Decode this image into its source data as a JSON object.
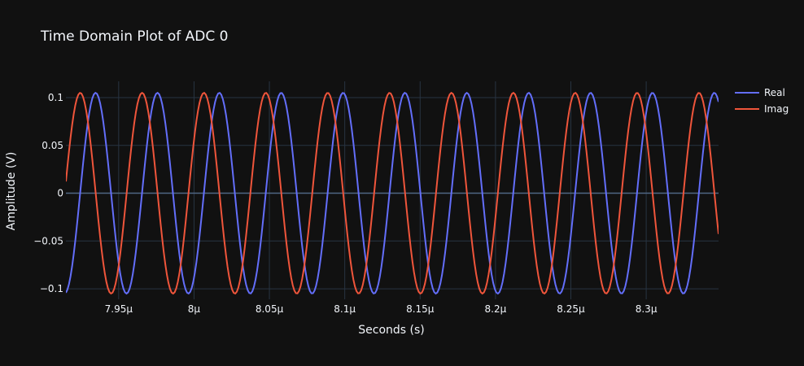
{
  "chart_data": {
    "type": "line",
    "title": "Time Domain Plot of ADC 0",
    "xlabel": "Seconds (s)",
    "ylabel": "Amplitude (V)",
    "xlim": [
      7.915e-06,
      8.348e-06
    ],
    "ylim": [
      -0.111,
      0.117
    ],
    "x_ticks": [
      {
        "value": 7.95e-06,
        "label": "7.95μ"
      },
      {
        "value": 8e-06,
        "label": "8μ"
      },
      {
        "value": 8.05e-06,
        "label": "8.05μ"
      },
      {
        "value": 8.1e-06,
        "label": "8.1μ"
      },
      {
        "value": 8.15e-06,
        "label": "8.15μ"
      },
      {
        "value": 8.2e-06,
        "label": "8.2μ"
      },
      {
        "value": 8.25e-06,
        "label": "8.25μ"
      },
      {
        "value": 8.3e-06,
        "label": "8.3μ"
      }
    ],
    "y_ticks": [
      {
        "value": 0.1,
        "label": "0.1"
      },
      {
        "value": 0.05,
        "label": "0.05"
      },
      {
        "value": 0,
        "label": "0"
      },
      {
        "value": -0.05,
        "label": "−0.05"
      },
      {
        "value": -0.1,
        "label": "−0.1"
      }
    ],
    "grid": true,
    "legend": "top-right",
    "series": [
      {
        "name": "Real",
        "color": "#636efa",
        "amplitude": 0.105,
        "period": 4.105e-08,
        "peak_at": 7.9347e-06
      },
      {
        "name": "Imag",
        "color": "#ef553b",
        "amplitude": 0.105,
        "period": 4.105e-08,
        "peak_at": 7.9245e-06
      }
    ]
  }
}
